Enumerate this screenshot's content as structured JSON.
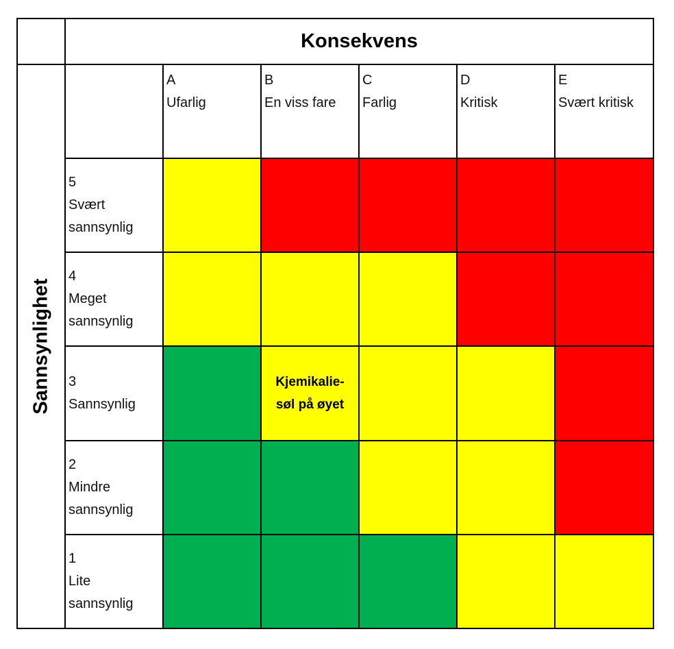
{
  "chart_data": {
    "type": "heatmap",
    "title": "Konsekvens",
    "xlabel": "Konsekvens",
    "ylabel": "Sannsynlighet",
    "columns": [
      {
        "code": "A",
        "label": "Ufarlig"
      },
      {
        "code": "B",
        "label": "En viss fare"
      },
      {
        "code": "C",
        "label": "Farlig"
      },
      {
        "code": "D",
        "label": "Kritisk"
      },
      {
        "code": "E",
        "label": "Svært kritisk"
      }
    ],
    "rows": [
      {
        "code": "5",
        "line1": "Svært",
        "line2": "sannsynlig",
        "cells": [
          "yellow",
          "red",
          "red",
          "red",
          "red"
        ]
      },
      {
        "code": "4",
        "line1": "Meget",
        "line2": "sannsynlig",
        "cells": [
          "yellow",
          "yellow",
          "yellow",
          "red",
          "red"
        ]
      },
      {
        "code": "3",
        "line1": "Sannsynlig",
        "line2": "",
        "cells": [
          "green",
          "yellow",
          "yellow",
          "yellow",
          "red"
        ]
      },
      {
        "code": "2",
        "line1": "Mindre",
        "line2": "sannsynlig",
        "cells": [
          "green",
          "green",
          "yellow",
          "yellow",
          "red"
        ]
      },
      {
        "code": "1",
        "line1": "Lite",
        "line2": "sannsynlig",
        "cells": [
          "green",
          "green",
          "green",
          "yellow",
          "yellow"
        ]
      }
    ],
    "colors": {
      "green": "#00b050",
      "yellow": "#ffff00",
      "red": "#ff0000"
    },
    "annotations": [
      {
        "row": "3",
        "col": "B",
        "text_line1": "Kjemikalie-",
        "text_line2": "søl på øyet"
      }
    ]
  }
}
